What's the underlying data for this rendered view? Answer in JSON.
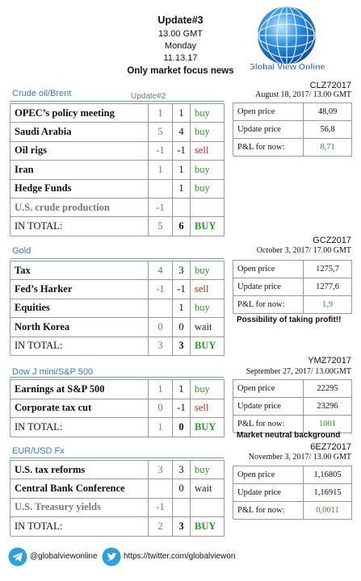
{
  "header": {
    "title": "Update#3",
    "time": "13.00 GMT",
    "day": "Monday",
    "date": "11.13.17",
    "subtitle": "Only market focus news",
    "logo": "Global View Online"
  },
  "signal_colors": {
    "buy": "#2a9a2a",
    "sell": "#d9261c",
    "wait": "#222222"
  },
  "sections": [
    {
      "title": "Crude oil/Brent",
      "update_label": "Update#2",
      "rows": [
        {
          "label": "OPEC’s policy meeting",
          "prev": 1,
          "now": 1,
          "signal": "buy"
        },
        {
          "label": "Saudi Arabia",
          "prev": 5,
          "now": 4,
          "signal": "buy"
        },
        {
          "label": "Oil rigs",
          "prev": -1,
          "now": -1,
          "signal": "sell"
        },
        {
          "label": "Iran",
          "prev": 1,
          "now": 1,
          "signal": "buy"
        },
        {
          "label": "Hedge Funds",
          "now": 1,
          "signal": "buy"
        },
        {
          "label": "U.S. crude production",
          "prev": -1
        }
      ],
      "total": {
        "label": "IN TOTAL:",
        "prev": 5,
        "now": 6,
        "signal": "BUY"
      },
      "contract": {
        "code": "CLZ72017",
        "date": "August 18, 2017/ 13.00 GMT",
        "rows": [
          {
            "label": "Open price",
            "value": "48,09"
          },
          {
            "label": "Update price",
            "value": "56,8"
          },
          {
            "label": "P&L for now:",
            "value": "8,71",
            "color": "#2a9a2a"
          }
        ]
      }
    },
    {
      "title": "Gold",
      "rows": [
        {
          "label": "Tax",
          "prev": 4,
          "now": 3,
          "signal": "buy"
        },
        {
          "label": "Fed’s Harker",
          "prev": -1,
          "now": -1,
          "signal": "sell"
        },
        {
          "label": "Equities",
          "now": 1,
          "signal": "buy"
        },
        {
          "label": "North Korea",
          "prev": 0,
          "now": 0,
          "signal": "wait"
        }
      ],
      "total": {
        "label": "IN TOTAL:",
        "prev": 3,
        "now": 3,
        "signal": "BUY"
      },
      "contract": {
        "code": "GCZ2017",
        "date": "October 3, 2017/ 17.00 GMT",
        "rows": [
          {
            "label": "Open price",
            "value": "1275,7"
          },
          {
            "label": "Update price",
            "value": "1277,6"
          },
          {
            "label": "P&L for now:",
            "value": "1,9",
            "color": "#2a9a2a"
          }
        ],
        "note": "Possibility of taking profit!!"
      }
    },
    {
      "title": "Dow J mini/S&P 500",
      "rows": [
        {
          "label": "Earnings at S&P 500",
          "prev": 1,
          "now": 1,
          "signal": "buy"
        },
        {
          "label": "Corporate tax cut",
          "prev": 0,
          "now": -1,
          "signal": "sell"
        }
      ],
      "total": {
        "label": "IN TOTAL:",
        "prev": 1,
        "now": 0,
        "signal": "BUY"
      },
      "contract": {
        "code": "YMZ72017",
        "date": "September 27, 2017/ 13.00GMT",
        "rows": [
          {
            "label": "Open price",
            "value": "22295"
          },
          {
            "label": "Update price",
            "value": "23296"
          },
          {
            "label": "P&L for now:",
            "value": "1001",
            "color": "#2a9a2a"
          }
        ],
        "note": "Market neutral background"
      }
    },
    {
      "title": "EUR/USD Fx",
      "rows": [
        {
          "label": "U.S. tax reforms",
          "prev": 3,
          "now": 3,
          "signal": "buy"
        },
        {
          "label": "Central Bank Conference",
          "now": 0,
          "signal": "wait"
        },
        {
          "label": "U.S. Treasury yields",
          "prev": -1
        }
      ],
      "total": {
        "label": "IN TOTAL:",
        "prev": 2,
        "now": 3,
        "signal": "BUY"
      },
      "contract": {
        "code": "6EZ72017",
        "date": "November 3, 2017/ 13.00 GMT",
        "rows": [
          {
            "label": "Open price",
            "value": "1,16805"
          },
          {
            "label": "Update price",
            "value": "1,16915"
          },
          {
            "label": "P&L for now:",
            "value": "0,0011",
            "color": "#2a9a2a"
          }
        ]
      }
    }
  ],
  "footer": {
    "telegram": "@globalviewonline",
    "twitter": "https://twitter.com/globalviewon"
  }
}
